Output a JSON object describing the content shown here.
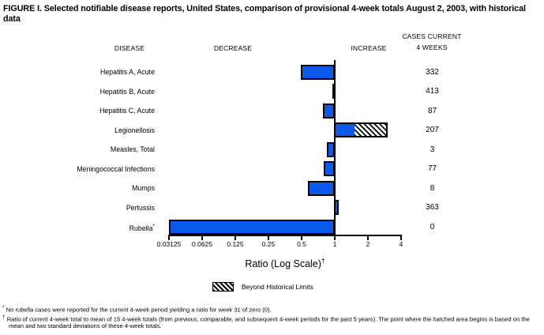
{
  "title": "FIGURE I. Selected notifiable disease reports, United States, comparison of provisional 4-week totals August 2, 2003, with historical data",
  "column_headers": {
    "disease": "DISEASE",
    "decrease": "DECREASE",
    "increase": "INCREASE",
    "cases_line1": "CASES CURRENT",
    "cases_line2": "4 WEEKS"
  },
  "chart_data": {
    "type": "bar",
    "orientation": "horizontal",
    "x_scale": "log2",
    "baseline_ratio": 1,
    "xlabel": "Ratio (Log Scale)",
    "xlabel_superscript": "†",
    "x_ticks": [
      "0.03125",
      "0.0625",
      "0.125",
      "0.25",
      "0.5",
      "1",
      "2",
      "4"
    ],
    "x_range": [
      0.03125,
      4
    ],
    "bar_color": "#0b59e8",
    "legend": {
      "swatch": "hatched-diagonal",
      "label": "Beyond Historical Limits",
      "position": "below-axis"
    },
    "rows": [
      {
        "disease": "Hepatitis A, Acute",
        "ratio": 0.49,
        "direction": "decrease",
        "cases": "332"
      },
      {
        "disease": "Hepatitis B, Acute",
        "ratio": 0.95,
        "direction": "decrease",
        "cases": "413"
      },
      {
        "disease": "Hepatitis C, Acute",
        "ratio": 0.78,
        "direction": "decrease",
        "cases": "87"
      },
      {
        "disease": "Legionellosis",
        "ratio": 3.0,
        "historical_limit": 1.5,
        "beyond_historical_limits": true,
        "direction": "increase",
        "cases": "207"
      },
      {
        "disease": "Measles, Total",
        "ratio": 0.85,
        "direction": "decrease",
        "cases": "3"
      },
      {
        "disease": "Meningococcal Infections",
        "ratio": 0.79,
        "direction": "decrease",
        "cases": "77"
      },
      {
        "disease": "Mumps",
        "ratio": 0.57,
        "direction": "decrease",
        "cases": "8"
      },
      {
        "disease": "Pertussis",
        "ratio": 1.09,
        "direction": "increase",
        "cases": "363"
      },
      {
        "disease": "Rubella",
        "marker": "*",
        "ratio": 0.03125,
        "actual_ratio": 0,
        "direction": "decrease",
        "cases": "0"
      }
    ]
  },
  "footnotes": [
    {
      "marker": "*",
      "text": "No rubella cases were reported for the current 4-week period yielding a ratio for week 31 of zero (0)."
    },
    {
      "marker": "†",
      "text": "Ratio of current 4-week total to mean of 15 4-week totals (from previous, comparable, and subsequent 4-week periods for the past 5 years). The point where the hatched area begins is based on the mean and two standard deviations of these 4-week totals."
    }
  ],
  "colors": {
    "bar_blue": "#0b59e8",
    "axis_black": "#000000",
    "background": "#ffffff"
  }
}
